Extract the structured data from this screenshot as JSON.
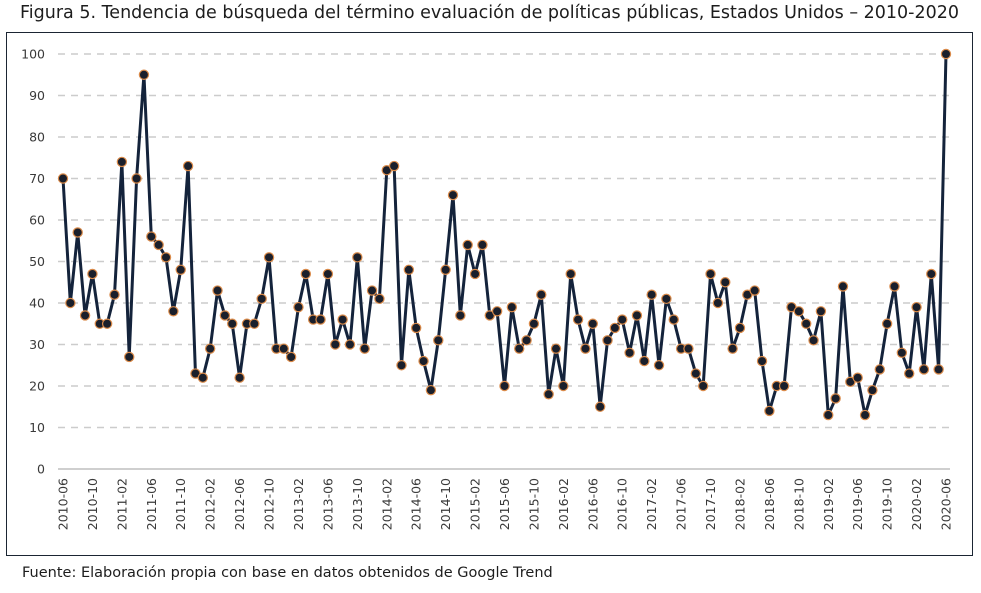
{
  "title": "Figura 5. Tendencia de búsqueda del término evaluación de políticas públicas, Estados Unidos – 2010-2020",
  "source": "Fuente: Elaboración propia con base en datos obtenidos de Google Trend",
  "colors": {
    "line": "#14233b",
    "marker_fill": "#1a1f2b",
    "marker_stroke": "#d98a4a",
    "grid": "#cccccc",
    "frame": "#1b2533"
  },
  "chart_data": {
    "type": "line",
    "title": "Figura 5. Tendencia de búsqueda del término evaluación de políticas públicas, Estados Unidos – 2010-2020",
    "xlabel": "",
    "ylabel": "",
    "ylim": [
      0,
      100
    ],
    "yticks": [
      "0",
      "10",
      "20",
      "30",
      "40",
      "50",
      "60",
      "70",
      "80",
      "90",
      "100"
    ],
    "grid": "horizontal dashed",
    "legend": "none",
    "start_month": "2010-06",
    "end_month": "2020-06",
    "x_tick_labels": [
      "2010-06",
      "2010-10",
      "2011-02",
      "2011-06",
      "2011-10",
      "2012-02",
      "2012-06",
      "2012-10",
      "2013-02",
      "2013-06",
      "2013-10",
      "2014-02",
      "2014-06",
      "2014-10",
      "2015-02",
      "2015-06",
      "2015-10",
      "2016-02",
      "2016-06",
      "2016-10",
      "2017-02",
      "2017-06",
      "2017-10",
      "2018-02",
      "2018-06",
      "2018-10",
      "2019-02",
      "2019-06",
      "2019-10",
      "2020-02",
      "2020-06"
    ],
    "series": [
      {
        "name": "evaluación de políticas públicas",
        "values": [
          70,
          40,
          57,
          37,
          47,
          35,
          35,
          42,
          74,
          27,
          70,
          95,
          56,
          54,
          51,
          38,
          48,
          73,
          23,
          22,
          29,
          43,
          37,
          35,
          22,
          35,
          35,
          41,
          51,
          29,
          29,
          27,
          39,
          47,
          36,
          36,
          47,
          30,
          36,
          30,
          51,
          29,
          43,
          41,
          72,
          73,
          25,
          48,
          34,
          26,
          19,
          31,
          48,
          66,
          37,
          54,
          47,
          54,
          37,
          38,
          20,
          39,
          29,
          31,
          35,
          42,
          18,
          29,
          20,
          47,
          36,
          29,
          35,
          15,
          31,
          34,
          36,
          28,
          37,
          26,
          42,
          25,
          41,
          36,
          29,
          29,
          23,
          20,
          47,
          40,
          45,
          29,
          34,
          42,
          43,
          26,
          14,
          20,
          20,
          39,
          38,
          35,
          31,
          38,
          13,
          17,
          44,
          21,
          22,
          13,
          19,
          24,
          35,
          44,
          28,
          23,
          39,
          24,
          47,
          24,
          100
        ]
      }
    ]
  }
}
